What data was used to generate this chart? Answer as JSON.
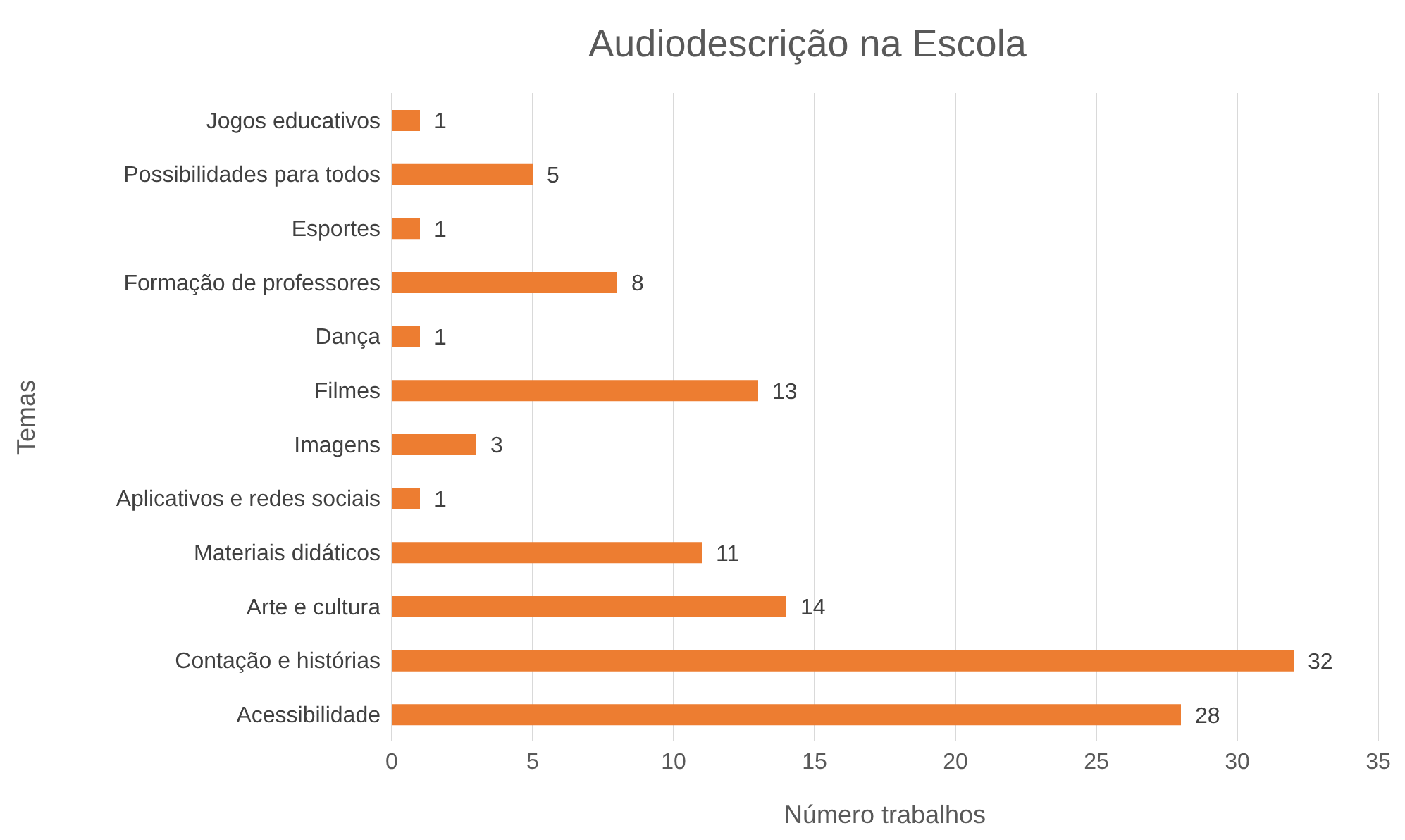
{
  "chart_data": {
    "type": "bar",
    "orientation": "horizontal",
    "title": "Audiodescrição na Escola",
    "xlabel": "Número trabalhos",
    "ylabel": "Temas",
    "categories": [
      "Jogos educativos",
      "Possibilidades para todos",
      "Esportes",
      "Formação de professores",
      "Dança",
      "Filmes",
      "Imagens",
      "Aplicativos e redes sociais",
      "Materiais didáticos",
      "Arte e cultura",
      "Contação e histórias",
      "Acessibilidade"
    ],
    "values": [
      1,
      5,
      1,
      8,
      1,
      13,
      3,
      1,
      11,
      14,
      32,
      28
    ],
    "color": "#ed7d31",
    "xlim": [
      0,
      35
    ],
    "xticks": [
      0,
      5,
      10,
      15,
      20,
      25,
      30,
      35
    ],
    "grid": "x",
    "data_labels": true,
    "legend": false
  }
}
